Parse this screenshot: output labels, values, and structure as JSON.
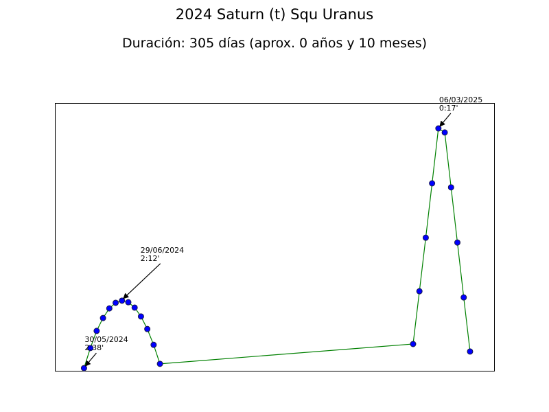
{
  "chart_data": {
    "type": "line",
    "title": "2024 Saturn (t) Squ Uranus",
    "subtitle": "Duración: 305 días (aprox. 0 años y 10 meses)",
    "x": [
      "30/05/2024",
      "04/06/2024",
      "09/06/2024",
      "14/06/2024",
      "19/06/2024",
      "24/06/2024",
      "29/06/2024",
      "04/07/2024",
      "09/07/2024",
      "14/07/2024",
      "19/07/2024",
      "24/07/2024",
      "29/07/2024",
      "14/02/2025",
      "19/02/2025",
      "24/02/2025",
      "01/03/2025",
      "06/03/2025",
      "11/03/2025",
      "16/03/2025",
      "21/03/2025",
      "26/03/2025",
      "31/03/2025"
    ],
    "series": [
      {
        "color": "#008000",
        "marker_color": "#0000ff",
        "values": [
          1.0,
          8.5,
          14.9,
          19.7,
          23.3,
          25.4,
          26.2,
          25.6,
          23.6,
          20.3,
          15.6,
          9.7,
          2.6,
          10.0,
          29.7,
          49.7,
          70.0,
          90.5,
          89.0,
          68.5,
          47.9,
          27.4,
          7.2
        ]
      }
    ],
    "xlim": [
      "07/05/2024",
      "19/04/2025"
    ],
    "ylim": [
      0,
      100
    ],
    "annotations": [
      {
        "date": "30/05/2024",
        "orb": "2:38'"
      },
      {
        "date": "29/06/2024",
        "orb": "2:12'"
      },
      {
        "date": "06/03/2025",
        "orb": "0:17'"
      }
    ]
  }
}
